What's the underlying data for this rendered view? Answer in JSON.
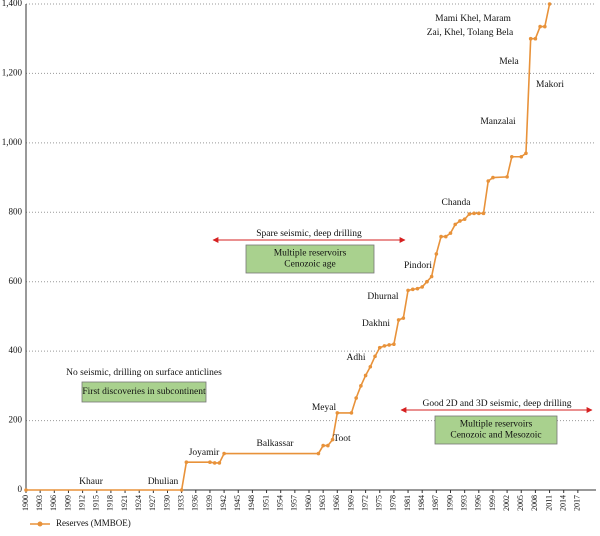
{
  "chart_data": {
    "type": "line",
    "x": [
      1900,
      1933,
      1934,
      1939,
      1940,
      1941,
      1942,
      1962,
      1963,
      1964,
      1965,
      1966,
      1969,
      1970,
      1971,
      1972,
      1973,
      1974,
      1975,
      1976,
      1977,
      1978,
      1979,
      1980,
      1981,
      1982,
      1983,
      1984,
      1985,
      1986,
      1987,
      1988,
      1989,
      1990,
      1991,
      1992,
      1993,
      1994,
      1995,
      1996,
      1997,
      1998,
      1999,
      2002,
      2003,
      2005,
      2006,
      2007,
      2008,
      2009,
      2010,
      2011
    ],
    "series": [
      {
        "name": "Reserves (MMBOE)",
        "color": "#e8923a",
        "values": [
          0,
          0,
          80,
          80,
          78,
          78,
          105,
          105,
          128,
          128,
          145,
          222,
          222,
          265,
          300,
          330,
          355,
          385,
          410,
          415,
          418,
          420,
          490,
          495,
          575,
          578,
          580,
          585,
          600,
          615,
          680,
          730,
          730,
          740,
          765,
          775,
          780,
          795,
          797,
          797,
          797,
          890,
          900,
          902,
          960,
          960,
          970,
          1300,
          1300,
          1335,
          1335,
          1400
        ]
      }
    ],
    "xlim": [
      1900,
      2020
    ],
    "xticks": [
      1900,
      1903,
      1906,
      1909,
      1912,
      1915,
      1918,
      1921,
      1924,
      1927,
      1930,
      1933,
      1936,
      1939,
      1942,
      1945,
      1948,
      1951,
      1954,
      1957,
      1960,
      1963,
      1966,
      1969,
      1972,
      1975,
      1978,
      1981,
      1984,
      1987,
      1990,
      1993,
      1996,
      1999,
      2002,
      2005,
      2008,
      2011,
      2014,
      2017
    ],
    "ylim": [
      0,
      1400
    ],
    "yticks": [
      0,
      200,
      400,
      600,
      800,
      {
        "value": 1000,
        "label": "1,000"
      },
      {
        "value": 1200,
        "label": "1,200"
      },
      {
        "value": 1400,
        "label": "1,400"
      }
    ],
    "grid": true,
    "annotations": [
      "Khaur",
      "Dhulian",
      "Joyamir",
      "Balkassar",
      "Meyal",
      "Toot",
      "Adhi",
      "Dakhni",
      "Dhurnal",
      "Pindori",
      "Chanda",
      "Manzalai",
      "Mela",
      "Makori",
      "Mami Khel, Maram",
      "Zai, Khel, Tolang Bela"
    ],
    "eras": [
      {
        "text": "No seismic, drilling on surface anticlines",
        "box": [
          "First discoveries in subcontinent"
        ]
      },
      {
        "text": "Spare seismic, deep drilling",
        "box": [
          "Multiple reservoirs",
          "Cenozoic age"
        ]
      },
      {
        "text": "Good 2D and 3D seismic, deep drilling",
        "box": [
          "Multiple reservoirs",
          "Cenozoic and Mesozoic"
        ]
      }
    ]
  }
}
